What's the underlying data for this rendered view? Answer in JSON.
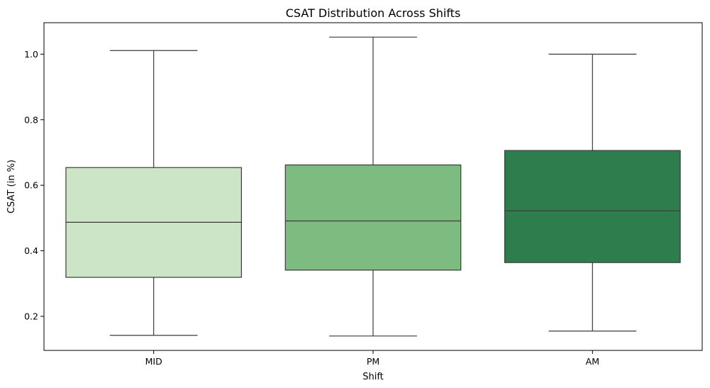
{
  "chart_data": {
    "type": "box",
    "title": "CSAT Distribution Across Shifts",
    "xlabel": "Shift",
    "ylabel": "CSAT (in %)",
    "ylim": [
      0.096,
      1.096
    ],
    "yticks": [
      "0.2",
      "0.4",
      "0.6",
      "0.8",
      "1.0"
    ],
    "ytick_values": [
      0.2,
      0.4,
      0.6,
      0.8,
      1.0
    ],
    "grid": false,
    "legend": "none",
    "categories": [
      "MID",
      "PM",
      "AM"
    ],
    "boxes": [
      {
        "category": "MID",
        "whisker_low": 0.142,
        "q1": 0.319,
        "median": 0.487,
        "q3": 0.654,
        "whisker_high": 1.011,
        "color": "#cce5c7"
      },
      {
        "category": "PM",
        "whisker_low": 0.14,
        "q1": 0.341,
        "median": 0.491,
        "q3": 0.662,
        "whisker_high": 1.052,
        "color": "#7dbb80"
      },
      {
        "category": "AM",
        "whisker_low": 0.155,
        "q1": 0.364,
        "median": 0.522,
        "q3": 0.706,
        "whisker_high": 1.0,
        "color": "#2e7d4d"
      }
    ],
    "line_color": "#3b3b3b"
  }
}
